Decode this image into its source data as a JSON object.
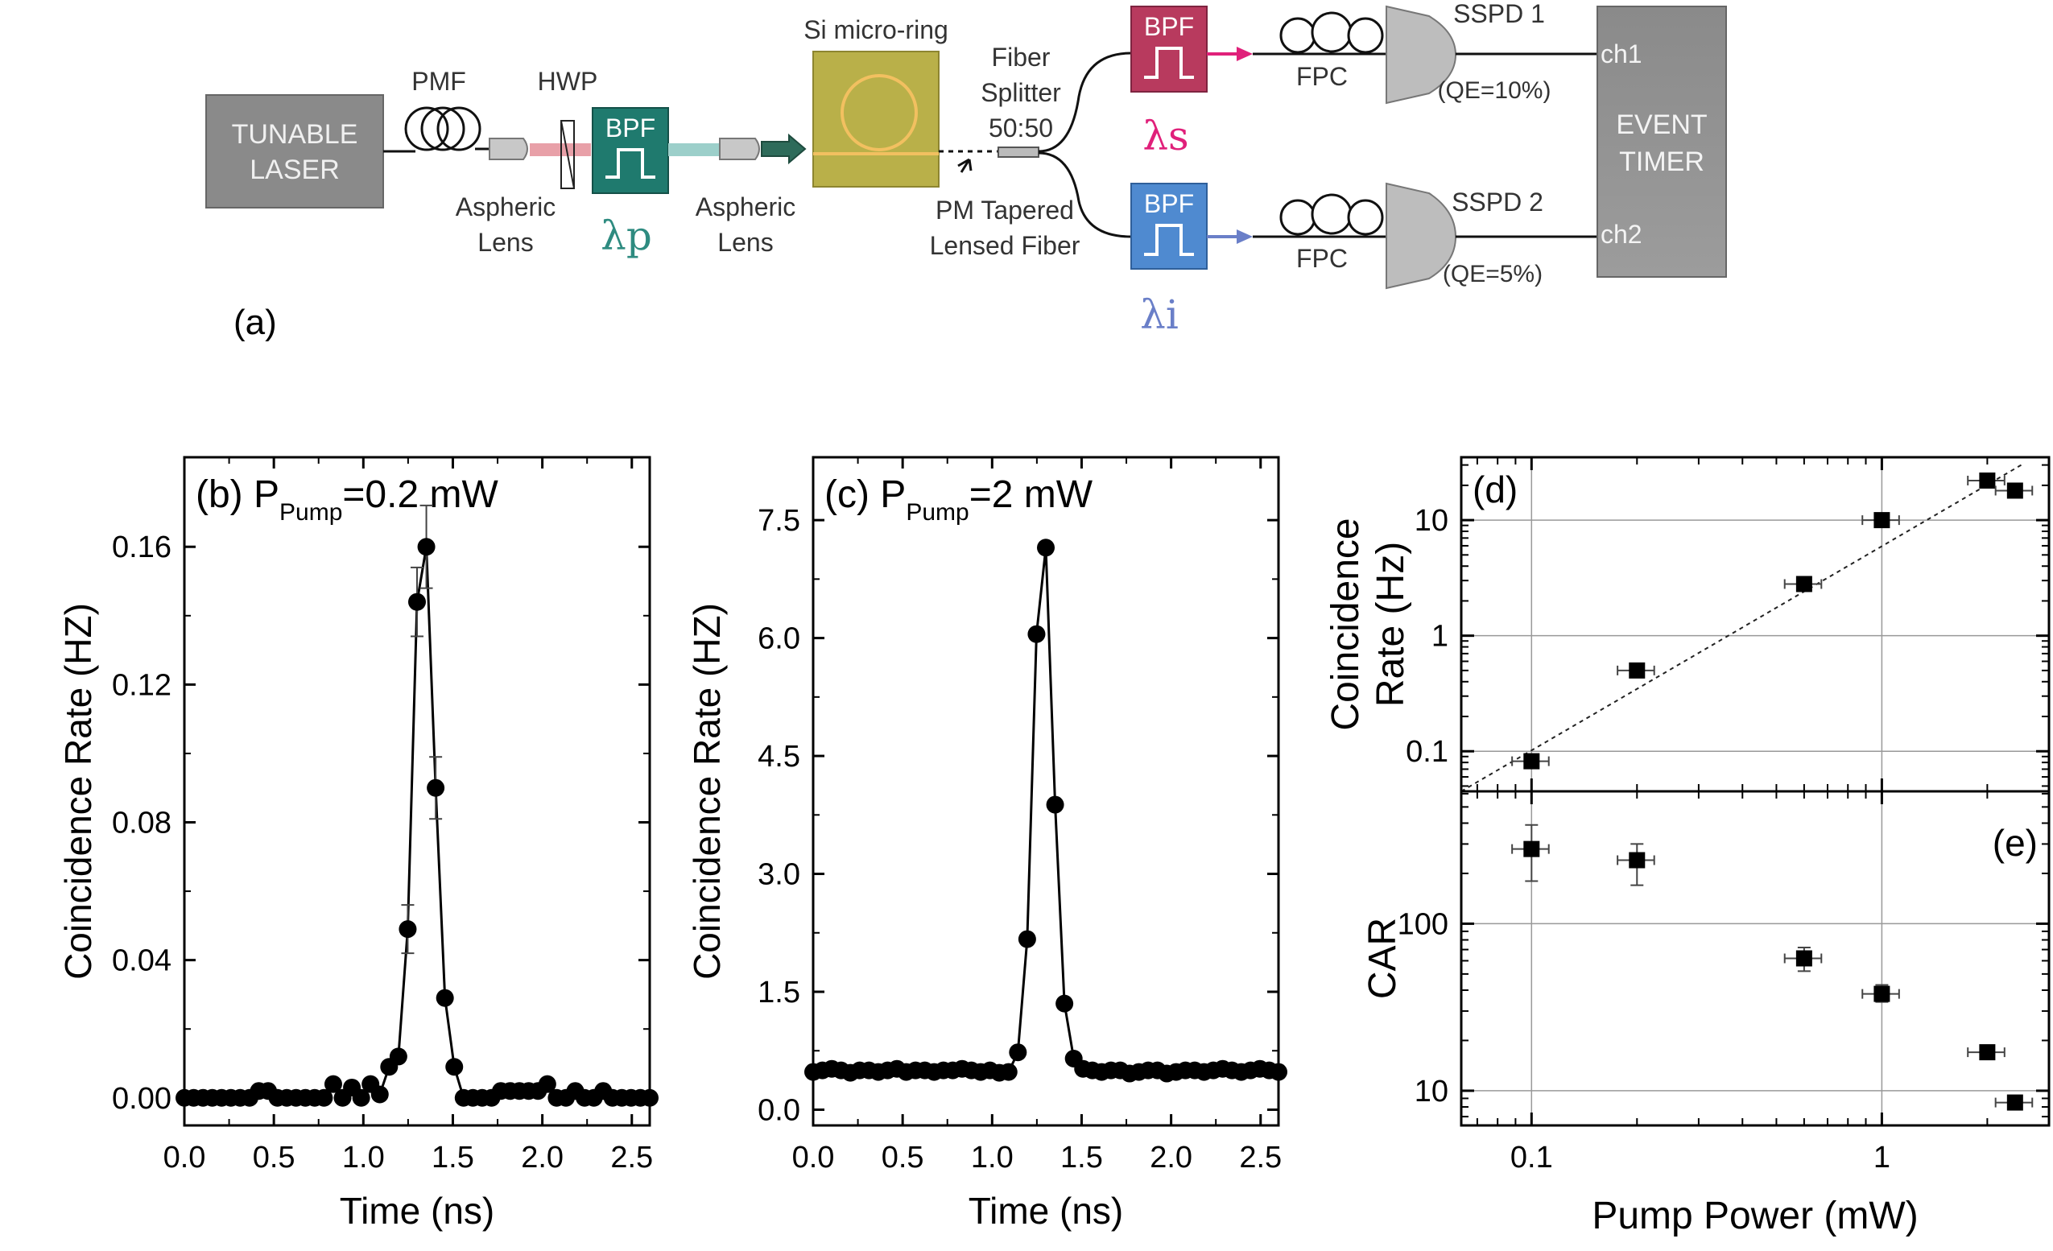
{
  "setup": {
    "panel_label": "(a)",
    "laser": [
      "TUNABLE",
      "LASER"
    ],
    "pmf": "PMF",
    "hwp": "HWP",
    "bpf": "BPF",
    "lens1": [
      "Aspheric",
      "Lens"
    ],
    "lens2": [
      "Aspheric",
      "Lens"
    ],
    "lambda_p": "λp",
    "ring": "Si micro-ring",
    "splitter": [
      "Fiber",
      "Splitter",
      "50:50"
    ],
    "tapered": [
      "PM Tapered",
      "Lensed Fiber"
    ],
    "lambda_s": "λs",
    "lambda_i": "λi",
    "fpc": "FPC",
    "sspd1": "SSPD 1",
    "sspd2": "SSPD 2",
    "qe1": "(QE=10%)",
    "qe2": "(QE=5%)",
    "ch1": "ch1",
    "ch2": "ch2",
    "timer": [
      "EVENT",
      "TIMER"
    ],
    "colors": {
      "pump": "#2e8b80",
      "signal": "#e0207a",
      "idler": "#6a7fc8",
      "bpf_s": "#c03060",
      "bpf_i": "#5a8fd0"
    }
  },
  "chart_data": [
    {
      "type": "line",
      "panel": "(b)",
      "annotation": {
        "prefix": "P",
        "sub": "Pump",
        "suffix": "=0.2 mW"
      },
      "xlabel": "Time (ns)",
      "ylabel": "Coincidence Rate (HZ)",
      "xlim": [
        0,
        2.6
      ],
      "ylim": [
        -0.008,
        0.186
      ],
      "xticks": [
        0.0,
        0.5,
        1.0,
        1.5,
        2.0,
        2.5
      ],
      "xtick_labels": [
        "0.0",
        "0.5",
        "1.0",
        "1.5",
        "2.0",
        "2.5"
      ],
      "yticks": [
        0.0,
        0.04,
        0.08,
        0.12,
        0.16
      ],
      "ytick_labels": [
        "0.00",
        "0.04",
        "0.08",
        "0.12",
        "0.16"
      ],
      "x": [
        0.0,
        0.052,
        0.104,
        0.156,
        0.208,
        0.26,
        0.312,
        0.364,
        0.416,
        0.468,
        0.52,
        0.572,
        0.624,
        0.676,
        0.728,
        0.78,
        0.832,
        0.884,
        0.936,
        0.988,
        1.04,
        1.092,
        1.144,
        1.196,
        1.248,
        1.3,
        1.352,
        1.404,
        1.456,
        1.508,
        1.56,
        1.612,
        1.664,
        1.716,
        1.768,
        1.82,
        1.872,
        1.924,
        1.976,
        2.028,
        2.08,
        2.132,
        2.184,
        2.236,
        2.288,
        2.34,
        2.392,
        2.444,
        2.496,
        2.548,
        2.6
      ],
      "y": [
        0.0,
        0.0,
        0.0,
        0.0,
        0.0,
        0.0,
        0.0,
        0.0,
        0.002,
        0.002,
        0.0,
        0.0,
        0.0,
        0.0,
        0.0,
        0.0,
        0.004,
        0.0,
        0.003,
        0.0,
        0.004,
        0.001,
        0.009,
        0.012,
        0.049,
        0.144,
        0.16,
        0.09,
        0.029,
        0.009,
        0.0,
        0.0,
        0.0,
        0.0,
        0.002,
        0.002,
        0.002,
        0.002,
        0.002,
        0.004,
        0.0,
        0.0,
        0.002,
        0.0,
        0.0,
        0.002,
        0.0,
        0.0,
        0.0,
        0.0,
        0.0
      ],
      "yerr": [
        0,
        0,
        0,
        0,
        0,
        0,
        0,
        0,
        0,
        0,
        0,
        0,
        0,
        0,
        0,
        0,
        0,
        0,
        0,
        0,
        0,
        0,
        0,
        0,
        0.007,
        0.01,
        0.012,
        0.009,
        0,
        0,
        0,
        0,
        0,
        0,
        0,
        0,
        0,
        0,
        0,
        0,
        0,
        0,
        0,
        0,
        0,
        0,
        0,
        0,
        0,
        0,
        0
      ]
    },
    {
      "type": "line",
      "panel": "(c)",
      "annotation": {
        "prefix": "P",
        "sub": "Pump",
        "suffix": "=2 mW"
      },
      "xlabel": "Time (ns)",
      "ylabel": "Coincidence Rate (HZ)",
      "xlim": [
        0,
        2.6
      ],
      "ylim": [
        -0.2,
        8.3
      ],
      "xticks": [
        0.0,
        0.5,
        1.0,
        1.5,
        2.0,
        2.5
      ],
      "xtick_labels": [
        "0.0",
        "0.5",
        "1.0",
        "1.5",
        "2.0",
        "2.5"
      ],
      "yticks": [
        0.0,
        1.5,
        3.0,
        4.5,
        6.0,
        7.5
      ],
      "ytick_labels": [
        "0.0",
        "1.5",
        "3.0",
        "4.5",
        "6.0",
        "7.5"
      ],
      "x": [
        0.0,
        0.052,
        0.104,
        0.156,
        0.208,
        0.26,
        0.312,
        0.364,
        0.416,
        0.468,
        0.52,
        0.572,
        0.624,
        0.676,
        0.728,
        0.78,
        0.832,
        0.884,
        0.936,
        0.988,
        1.04,
        1.092,
        1.144,
        1.196,
        1.248,
        1.3,
        1.352,
        1.404,
        1.456,
        1.508,
        1.56,
        1.612,
        1.664,
        1.716,
        1.768,
        1.82,
        1.872,
        1.924,
        1.976,
        2.028,
        2.08,
        2.132,
        2.184,
        2.236,
        2.288,
        2.34,
        2.392,
        2.444,
        2.496,
        2.548,
        2.6
      ],
      "y": [
        0.48,
        0.5,
        0.52,
        0.5,
        0.47,
        0.5,
        0.5,
        0.48,
        0.5,
        0.52,
        0.48,
        0.5,
        0.5,
        0.48,
        0.5,
        0.5,
        0.52,
        0.5,
        0.48,
        0.5,
        0.47,
        0.48,
        0.73,
        2.17,
        6.05,
        7.15,
        3.88,
        1.35,
        0.65,
        0.52,
        0.5,
        0.48,
        0.5,
        0.5,
        0.46,
        0.48,
        0.5,
        0.5,
        0.46,
        0.48,
        0.5,
        0.5,
        0.48,
        0.5,
        0.52,
        0.5,
        0.48,
        0.5,
        0.52,
        0.5,
        0.48
      ],
      "yerr": []
    },
    {
      "type": "scatter",
      "panel": "(d)",
      "ylabel": [
        "Coincidence",
        "Rate (Hz)"
      ],
      "xscale": "log",
      "yscale": "log",
      "xlim": [
        0.063,
        3.0
      ],
      "ylim": [
        0.045,
        35
      ],
      "yticks": [
        0.1,
        1,
        10
      ],
      "ytick_labels": [
        "0.1",
        "1",
        "10"
      ],
      "grid": true,
      "x": [
        0.1,
        0.2,
        0.6,
        1.0,
        2.0,
        2.4
      ],
      "y": [
        0.082,
        0.5,
        2.8,
        10,
        22,
        18
      ],
      "xerr_frac": 0.12,
      "fit_line": {
        "x": [
          0.063,
          2.5
        ],
        "y": [
          0.045,
          30
        ]
      }
    },
    {
      "type": "scatter",
      "panel": "(e)",
      "ylabel": "CAR",
      "xlabel": "Pump Power (mW)",
      "xscale": "log",
      "yscale": "log",
      "xlim": [
        0.063,
        3.0
      ],
      "ylim": [
        6.2,
        620
      ],
      "xticks": [
        0.1,
        1
      ],
      "xtick_labels": [
        "0.1",
        "1"
      ],
      "yticks": [
        10,
        100
      ],
      "ytick_labels": [
        "10",
        "100"
      ],
      "grid": true,
      "x": [
        0.1,
        0.2,
        0.6,
        1.0,
        2.0,
        2.4
      ],
      "y": [
        280,
        240,
        62,
        38,
        17,
        8.5
      ],
      "yerr_low": [
        100,
        70,
        10,
        4,
        1.5,
        0.6
      ],
      "yerr_high": [
        110,
        60,
        10,
        5,
        1.5,
        0.6
      ],
      "xerr_frac": 0.12
    }
  ]
}
